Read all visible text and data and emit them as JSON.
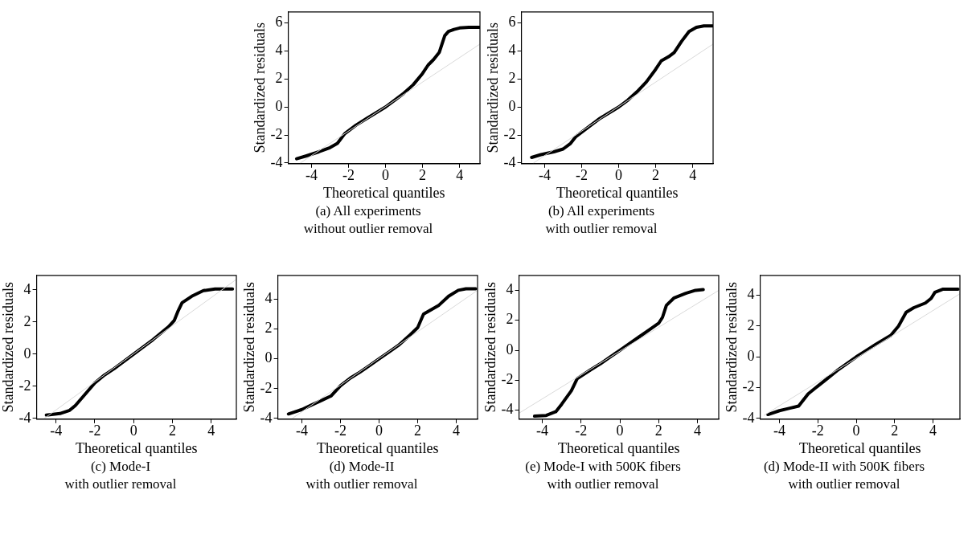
{
  "chart_data": [
    {
      "type": "line",
      "xlabel": "Theoretical quantiles",
      "ylabel": "Standardized residuals",
      "annotations": [
        "(a) All experiments",
        "without outlier removal"
      ],
      "xlim": [
        -5.25,
        5.1
      ],
      "ylim": [
        -4.05,
        6.8
      ],
      "xticks": [
        -4,
        -2,
        0,
        2,
        4
      ],
      "yticks": [
        -4,
        -2,
        0,
        2,
        4,
        6
      ],
      "legend": false,
      "grid": false,
      "series": [
        {
          "color": "#d9d9d9",
          "x": [
            -4.6,
            5.1
          ],
          "values": [
            -4.0,
            4.5
          ]
        },
        {
          "color": "#000000",
          "x": [
            -4.8,
            -4.3,
            -3.6,
            -3.0,
            -2.6,
            -2.2,
            -1.6,
            -1.0,
            -0.5,
            0,
            0.5,
            1.0,
            1.5,
            2.0,
            2.3,
            2.6,
            2.9,
            3.05,
            3.2,
            3.4,
            3.7,
            4.0,
            4.5,
            5.1
          ],
          "values": [
            -3.7,
            -3.5,
            -3.2,
            -2.9,
            -2.6,
            -1.9,
            -1.3,
            -0.8,
            -0.4,
            0,
            0.5,
            1.0,
            1.6,
            2.4,
            3.0,
            3.4,
            3.9,
            4.5,
            5.1,
            5.4,
            5.55,
            5.65,
            5.7,
            5.7
          ]
        }
      ]
    },
    {
      "type": "line",
      "xlabel": "Theoretical quantiles",
      "ylabel": "Standardized residuals",
      "annotations": [
        "(b) All experiments",
        "with outlier removal"
      ],
      "xlim": [
        -5.25,
        5.1
      ],
      "ylim": [
        -4.05,
        6.8
      ],
      "xticks": [
        -4,
        -2,
        0,
        2,
        4
      ],
      "yticks": [
        -4,
        -2,
        0,
        2,
        4,
        6
      ],
      "legend": false,
      "grid": false,
      "series": [
        {
          "color": "#d9d9d9",
          "x": [
            -4.6,
            5.1
          ],
          "values": [
            -4.0,
            4.5
          ]
        },
        {
          "color": "#000000",
          "x": [
            -4.7,
            -4.2,
            -3.5,
            -3.0,
            -2.6,
            -2.3,
            -1.6,
            -1.0,
            -0.5,
            0,
            0.5,
            1.0,
            1.5,
            2.0,
            2.3,
            2.7,
            3.0,
            3.4,
            3.8,
            4.2,
            4.6,
            5.1
          ],
          "values": [
            -3.6,
            -3.4,
            -3.2,
            -3.0,
            -2.6,
            -2.1,
            -1.4,
            -0.8,
            -0.4,
            0,
            0.5,
            1.1,
            1.8,
            2.7,
            3.3,
            3.6,
            3.9,
            4.7,
            5.4,
            5.7,
            5.8,
            5.8
          ]
        }
      ]
    },
    {
      "type": "line",
      "xlabel": "Theoretical quantiles",
      "ylabel": "Standardized residuals",
      "annotations": [
        "(c) Mode-I",
        "with outlier removal"
      ],
      "xlim": [
        -5.0,
        5.3
      ],
      "ylim": [
        -4.05,
        4.9
      ],
      "xticks": [
        -4,
        -2,
        0,
        2,
        4
      ],
      "yticks": [
        -4,
        -2,
        0,
        2,
        4
      ],
      "legend": false,
      "grid": false,
      "series": [
        {
          "color": "#d9d9d9",
          "x": [
            -4.6,
            5.3
          ],
          "values": [
            -4.0,
            4.65
          ]
        },
        {
          "color": "#000000",
          "x": [
            -4.5,
            -3.8,
            -3.3,
            -3.0,
            -2.5,
            -2.0,
            -1.5,
            -1.0,
            -0.5,
            0,
            0.5,
            1.0,
            1.5,
            1.8,
            2.1,
            2.3,
            2.5,
            3.0,
            3.6,
            4.2,
            5.1
          ],
          "values": [
            -3.8,
            -3.7,
            -3.5,
            -3.2,
            -2.5,
            -1.8,
            -1.3,
            -0.9,
            -0.45,
            0,
            0.45,
            0.9,
            1.4,
            1.7,
            2.1,
            2.7,
            3.2,
            3.6,
            3.95,
            4.05,
            4.05
          ]
        }
      ]
    },
    {
      "type": "line",
      "xlabel": "Theoretical quantiles",
      "ylabel": "Standardized residuals",
      "annotations": [
        "(d) Mode-II",
        "with outlier removal"
      ],
      "xlim": [
        -5.25,
        5.1
      ],
      "ylim": [
        -4.05,
        5.6
      ],
      "xticks": [
        -4,
        -2,
        0,
        2,
        4
      ],
      "yticks": [
        -4,
        -2,
        0,
        2,
        4
      ],
      "legend": false,
      "grid": false,
      "series": [
        {
          "color": "#d9d9d9",
          "x": [
            -4.5,
            5.1
          ],
          "values": [
            -4.0,
            4.6
          ]
        },
        {
          "color": "#000000",
          "x": [
            -4.7,
            -4.0,
            -3.5,
            -3.0,
            -2.5,
            -2.0,
            -1.5,
            -1.0,
            -0.5,
            0,
            0.5,
            1.0,
            1.6,
            2.0,
            2.3,
            2.7,
            3.1,
            3.6,
            4.1,
            4.5,
            5.0
          ],
          "values": [
            -3.7,
            -3.4,
            -3.1,
            -2.8,
            -2.5,
            -1.8,
            -1.3,
            -0.9,
            -0.45,
            0,
            0.45,
            0.9,
            1.6,
            2.1,
            3.0,
            3.3,
            3.6,
            4.2,
            4.6,
            4.7,
            4.7
          ]
        }
      ]
    },
    {
      "type": "line",
      "xlabel": "Theoretical quantiles",
      "ylabel": "Standardized residuals",
      "annotations": [
        "(e) Mode-I with 500K fibers",
        "with outlier removal"
      ],
      "xlim": [
        -5.2,
        5.1
      ],
      "ylim": [
        -4.6,
        5.0
      ],
      "xticks": [
        -4,
        -2,
        0,
        2,
        4
      ],
      "yticks": [
        -4,
        -2,
        0,
        2,
        4
      ],
      "legend": false,
      "grid": false,
      "series": [
        {
          "color": "#d9d9d9",
          "x": [
            -5.2,
            5.1
          ],
          "values": [
            -4.2,
            4.0
          ]
        },
        {
          "color": "#000000",
          "x": [
            -4.4,
            -3.8,
            -3.3,
            -3.0,
            -2.5,
            -2.2,
            -1.5,
            -1.0,
            -0.5,
            0,
            0.5,
            1.0,
            1.5,
            2.0,
            2.2,
            2.4,
            2.8,
            3.4,
            3.9,
            4.3
          ],
          "values": [
            -4.4,
            -4.35,
            -4.1,
            -3.6,
            -2.7,
            -1.9,
            -1.3,
            -0.9,
            -0.45,
            0,
            0.45,
            0.9,
            1.35,
            1.8,
            2.2,
            3.0,
            3.5,
            3.8,
            4.0,
            4.05
          ]
        }
      ]
    },
    {
      "type": "line",
      "xlabel": "Theoretical quantiles",
      "ylabel": "Standardized residuals",
      "annotations": [
        "(d) Mode-II with 500K fibers",
        "with outlier removal"
      ],
      "xlim": [
        -5.0,
        5.4
      ],
      "ylim": [
        -4.05,
        5.3
      ],
      "xticks": [
        -4,
        -2,
        0,
        2,
        4
      ],
      "yticks": [
        -4,
        -2,
        0,
        2,
        4
      ],
      "legend": false,
      "grid": false,
      "series": [
        {
          "color": "#d9d9d9",
          "x": [
            -4.8,
            5.4
          ],
          "values": [
            -3.8,
            4.1
          ]
        },
        {
          "color": "#000000",
          "x": [
            -4.6,
            -4.0,
            -3.5,
            -3.0,
            -2.5,
            -2.0,
            -1.5,
            -1.0,
            -0.5,
            0,
            0.5,
            1.0,
            1.8,
            2.2,
            2.6,
            3.0,
            3.6,
            3.9,
            4.1,
            4.5,
            5.3
          ],
          "values": [
            -3.75,
            -3.5,
            -3.35,
            -3.2,
            -2.4,
            -1.9,
            -1.4,
            -0.9,
            -0.45,
            0,
            0.4,
            0.8,
            1.4,
            2.0,
            2.9,
            3.2,
            3.5,
            3.8,
            4.2,
            4.4,
            4.4
          ]
        }
      ]
    }
  ]
}
